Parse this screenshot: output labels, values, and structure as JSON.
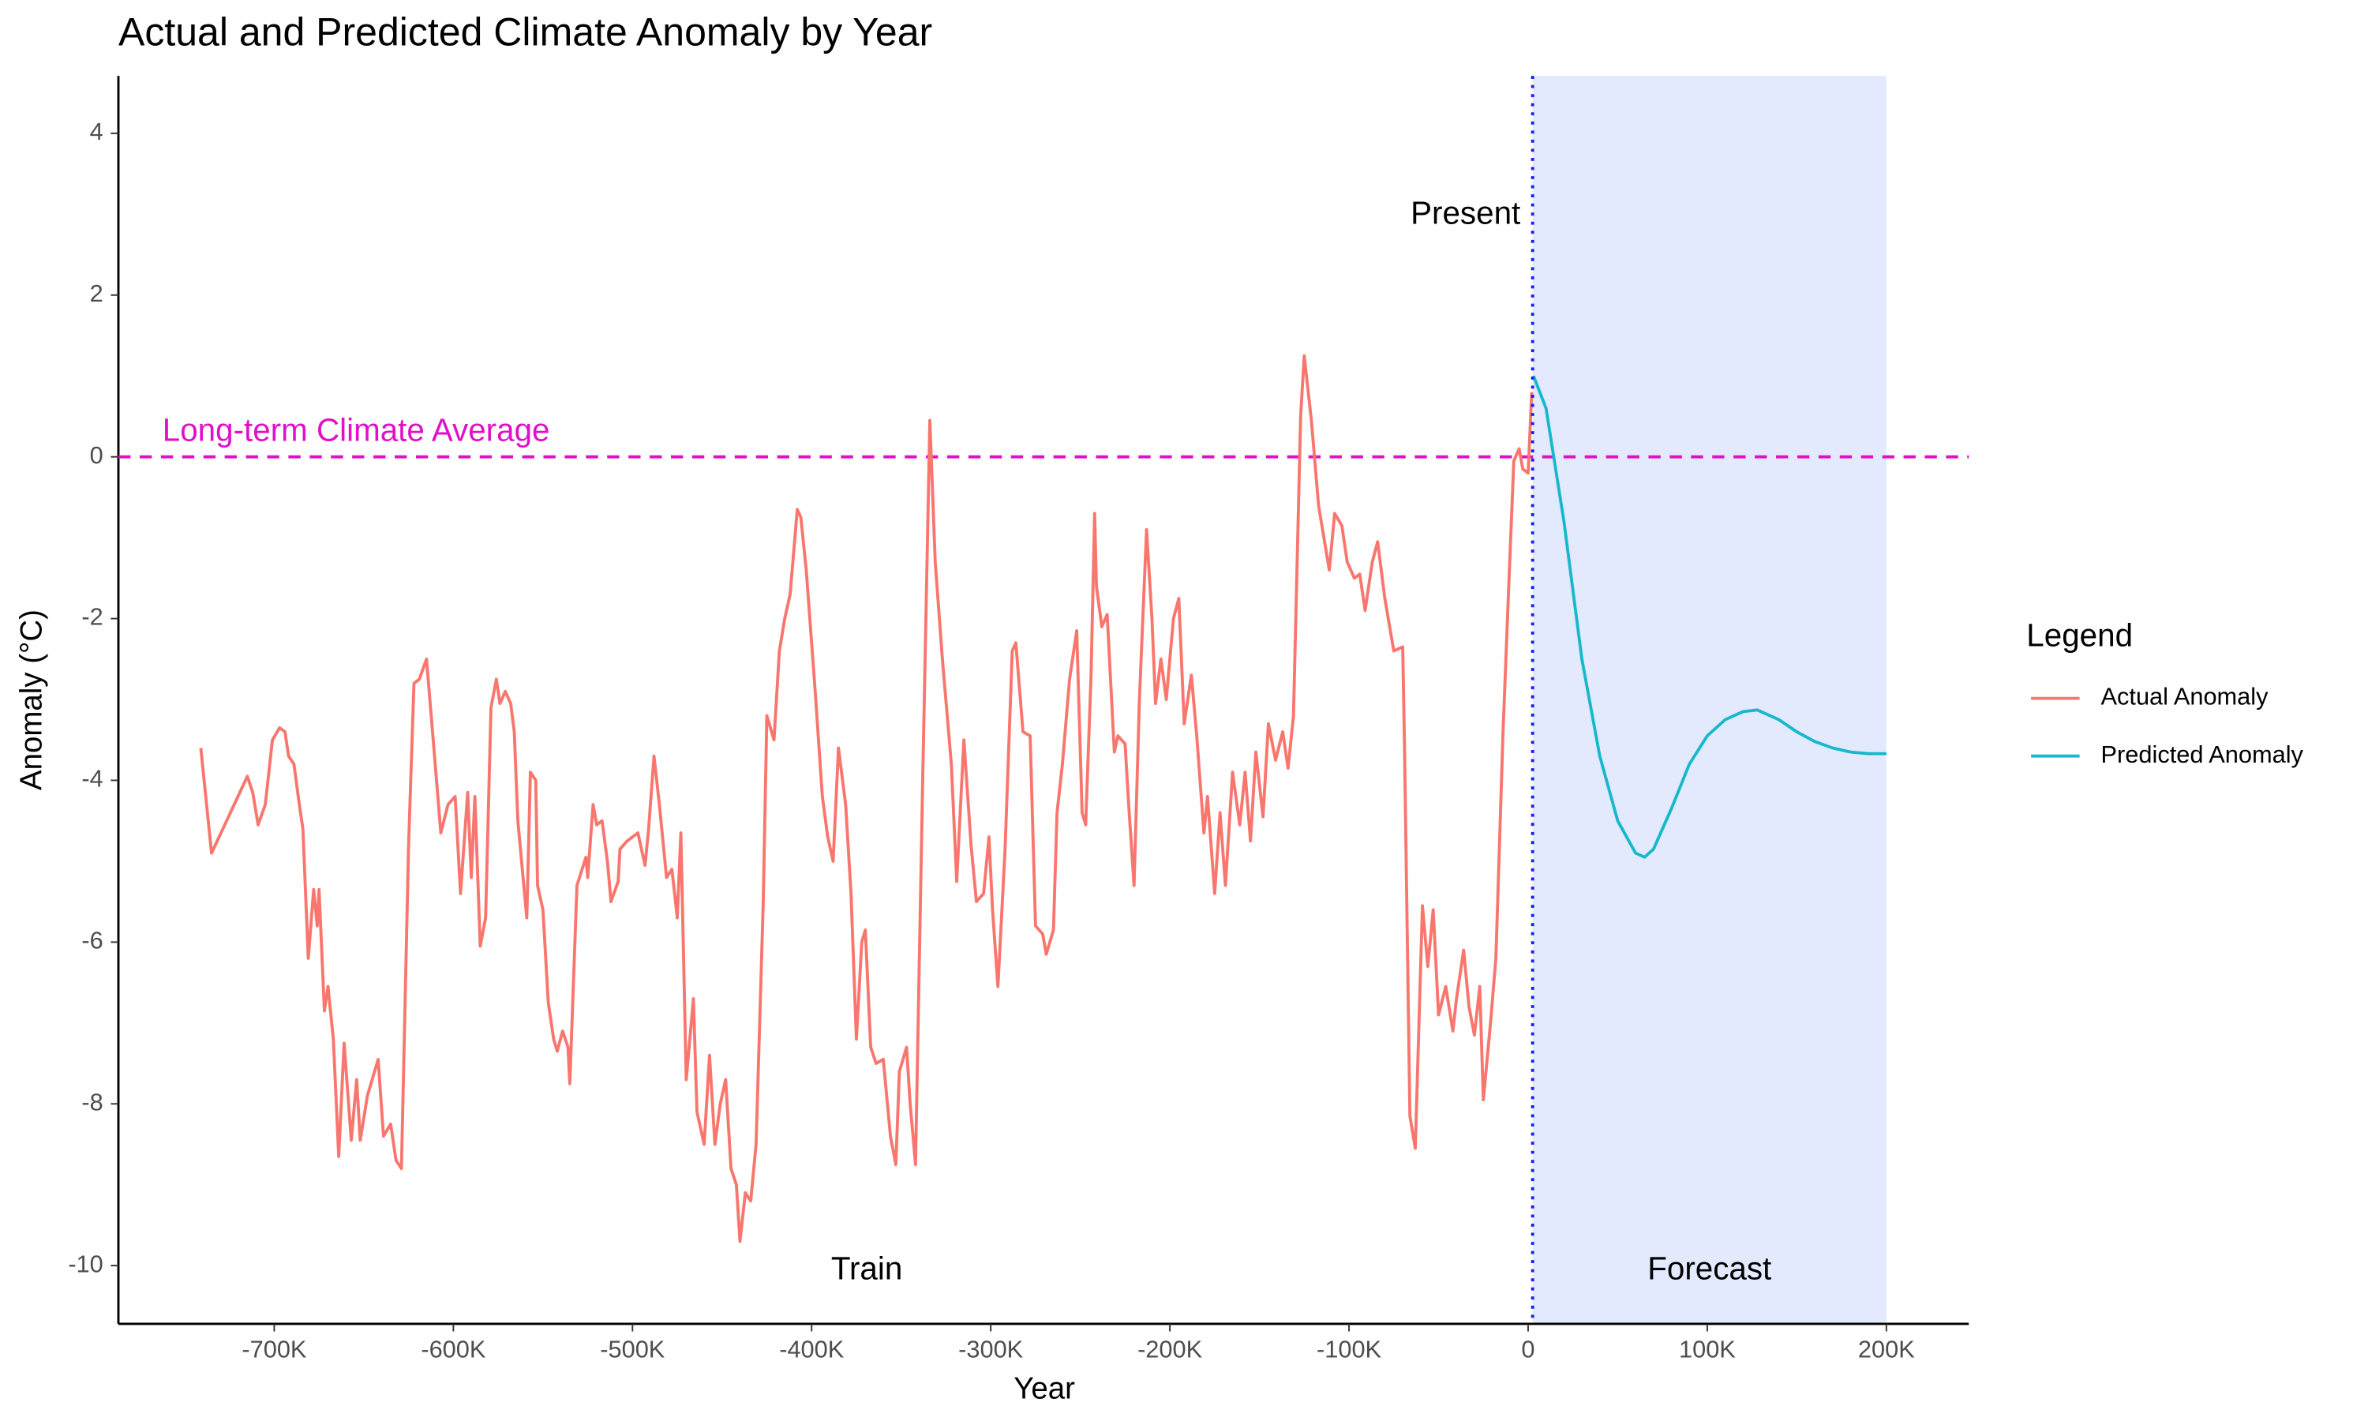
{
  "chart_data": {
    "type": "line",
    "title": "Actual and Predicted Climate Anomaly by Year",
    "xlabel": "Year",
    "ylabel": "Anomaly (°C)",
    "legend_title": "Legend",
    "legend": "right",
    "xlim": [
      -787000,
      246000
    ],
    "ylim": [
      -10.72,
      4.71
    ],
    "xticks": [
      {
        "value": -700000,
        "label": "-700K"
      },
      {
        "value": -600000,
        "label": "-600K"
      },
      {
        "value": -500000,
        "label": "-500K"
      },
      {
        "value": -400000,
        "label": "-400K"
      },
      {
        "value": -300000,
        "label": "-300K"
      },
      {
        "value": -200000,
        "label": "-200K"
      },
      {
        "value": -100000,
        "label": "-100K"
      },
      0,
      {
        "value": 100000,
        "label": "100K"
      },
      {
        "value": 200000,
        "label": "200K"
      }
    ],
    "yticks": [
      -10,
      -8,
      -6,
      -4,
      -2,
      0,
      2,
      4
    ],
    "grid": false,
    "reference_line": {
      "y": 0,
      "label": "Long-term Climate Average",
      "color": "#e010c8"
    },
    "present_line": {
      "x": 2500,
      "label": "Present",
      "color": "#1a1aff"
    },
    "forecast_region": {
      "x": [
        2500,
        200000
      ],
      "label": "Forecast",
      "color": "#e4eafe"
    },
    "train_label": "Train",
    "series": [
      {
        "name": "Actual Anomaly",
        "color": "#f8766d",
        "x": [
          -741000,
          -735000,
          -715000,
          -712000,
          -709000,
          -705000,
          -701000,
          -697000,
          -694000,
          -692000,
          -689000,
          -686000,
          -684000,
          -681000,
          -678000,
          -676000,
          -675000,
          -672000,
          -670000,
          -667000,
          -664000,
          -661000,
          -657000,
          -654000,
          -652000,
          -648000,
          -642000,
          -639000,
          -635000,
          -632000,
          -629000,
          -625000,
          -622000,
          -619000,
          -615000,
          -612000,
          -607000,
          -603000,
          -599000,
          -596000,
          -592000,
          -590000,
          -588000,
          -585000,
          -582000,
          -579000,
          -576000,
          -574000,
          -571000,
          -568000,
          -566000,
          -564000,
          -559000,
          -557000,
          -554000,
          -553000,
          -550000,
          -547000,
          -544000,
          -542000,
          -539000,
          -536000,
          -535000,
          -531000,
          -526000,
          -525000,
          -522000,
          -520000,
          -517000,
          -514000,
          -512000,
          -508000,
          -507000,
          -503000,
          -497000,
          -493000,
          -491000,
          -488000,
          -485000,
          -481000,
          -478000,
          -475000,
          -473000,
          -470000,
          -466000,
          -464000,
          -460000,
          -457000,
          -454000,
          -451000,
          -448000,
          -445000,
          -442000,
          -440000,
          -437000,
          -434000,
          -431000,
          -427000,
          -425000,
          -421000,
          -418000,
          -415000,
          -412000,
          -408000,
          -406000,
          -403000,
          -398000,
          -394000,
          -391000,
          -388000,
          -385000,
          -381000,
          -378000,
          -375000,
          -372000,
          -370000,
          -367000,
          -364000,
          -360000,
          -356000,
          -353000,
          -351000,
          -347000,
          -345000,
          -342000,
          -338000,
          -334000,
          -331000,
          -327000,
          -322000,
          -319000,
          -315000,
          -311000,
          -308000,
          -304000,
          -301000,
          -299000,
          -296000,
          -292000,
          -288000,
          -286000,
          -282000,
          -278000,
          -275000,
          -271000,
          -269000,
          -265000,
          -263000,
          -260000,
          -256000,
          -252000,
          -249000,
          -247000,
          -244000,
          -242000,
          -241000,
          -238000,
          -235000,
          -231000,
          -229000,
          -225000,
          -223000,
          -220000,
          -217000,
          -213000,
          -210000,
          -208000,
          -205000,
          -202000,
          -198000,
          -195000,
          -192000,
          -188000,
          -185000,
          -181000,
          -179000,
          -175000,
          -172000,
          -169000,
          -165000,
          -161000,
          -158000,
          -155000,
          -152000,
          -148000,
          -145000,
          -141000,
          -137000,
          -134000,
          -131000,
          -127000,
          -125000,
          -121000,
          -117000,
          -114000,
          -111000,
          -108000,
          -104000,
          -101000,
          -97000,
          -94000,
          -91000,
          -87000,
          -84000,
          -80000,
          -75000,
          -70000,
          -69000,
          -66000,
          -63000,
          -59000,
          -56000,
          -53000,
          -50000,
          -46000,
          -42000,
          -40000,
          -36000,
          -33000,
          -30000,
          -27000,
          -25000,
          -21000,
          -18000,
          -14000,
          -11000,
          -8000,
          -5000,
          -3000,
          0,
          2000
        ],
        "values": [
          -3.6,
          -4.9,
          -3.95,
          -4.15,
          -4.55,
          -4.3,
          -3.5,
          -3.35,
          -3.4,
          -3.7,
          -3.8,
          -4.3,
          -4.6,
          -6.2,
          -5.35,
          -5.8,
          -5.35,
          -6.85,
          -6.55,
          -7.2,
          -8.65,
          -7.25,
          -8.45,
          -7.7,
          -8.45,
          -7.9,
          -7.45,
          -8.4,
          -8.25,
          -8.7,
          -8.8,
          -4.8,
          -2.8,
          -2.75,
          -2.5,
          -3.3,
          -4.65,
          -4.3,
          -4.2,
          -5.4,
          -4.15,
          -5.2,
          -4.2,
          -6.05,
          -5.7,
          -3.1,
          -2.75,
          -3.05,
          -2.9,
          -3.05,
          -3.4,
          -4.5,
          -5.7,
          -3.9,
          -4.0,
          -5.3,
          -5.6,
          -6.75,
          -7.2,
          -7.35,
          -7.1,
          -7.3,
          -7.75,
          -5.3,
          -4.95,
          -5.2,
          -4.3,
          -4.55,
          -4.5,
          -5.0,
          -5.5,
          -5.25,
          -4.85,
          -4.75,
          -4.65,
          -5.05,
          -4.6,
          -3.7,
          -4.3,
          -5.2,
          -5.1,
          -5.7,
          -4.65,
          -7.7,
          -6.7,
          -8.1,
          -8.5,
          -7.4,
          -8.5,
          -8.0,
          -7.7,
          -8.8,
          -9.0,
          -9.7,
          -9.1,
          -9.2,
          -8.5,
          -5.5,
          -3.2,
          -3.5,
          -2.4,
          -2.0,
          -1.7,
          -0.65,
          -0.75,
          -1.4,
          -2.9,
          -4.2,
          -4.7,
          -5.0,
          -3.6,
          -4.3,
          -5.4,
          -7.2,
          -6.0,
          -5.85,
          -7.3,
          -7.5,
          -7.45,
          -8.4,
          -8.75,
          -7.6,
          -7.3,
          -8.0,
          -8.75,
          -4.0,
          0.45,
          -1.3,
          -2.5,
          -3.8,
          -5.25,
          -3.5,
          -4.8,
          -5.5,
          -5.4,
          -4.7,
          -5.6,
          -6.55,
          -4.85,
          -2.4,
          -2.3,
          -3.4,
          -3.45,
          -5.8,
          -5.9,
          -6.15,
          -5.85,
          -4.4,
          -3.8,
          -2.75,
          -2.15,
          -4.4,
          -4.55,
          -2.7,
          -0.7,
          -1.6,
          -2.1,
          -1.95,
          -3.65,
          -3.45,
          -3.55,
          -4.3,
          -5.3,
          -3.0,
          -0.9,
          -2.0,
          -3.05,
          -2.5,
          -3.0,
          -2.0,
          -1.75,
          -3.3,
          -2.7,
          -3.45,
          -4.65,
          -4.2,
          -5.4,
          -4.4,
          -5.3,
          -3.9,
          -4.55,
          -3.9,
          -4.75,
          -3.65,
          -4.45,
          -3.3,
          -3.75,
          -3.4,
          -3.85,
          -3.2,
          0.5,
          1.25,
          0.45,
          -0.6,
          -1.0,
          -1.4,
          -0.7,
          -0.85,
          -1.3,
          -1.5,
          -1.45,
          -1.9,
          -1.3,
          -1.05,
          -1.75,
          -2.4,
          -2.35,
          -3.6,
          -8.15,
          -8.55,
          -5.55,
          -6.3,
          -5.6,
          -6.9,
          -6.55,
          -7.1,
          -6.7,
          -6.1,
          -6.8,
          -7.15,
          -6.55,
          -7.95,
          -7.0,
          -6.2,
          -3.4,
          -1.7,
          -0.05,
          0.1,
          -0.15,
          -0.2,
          0.8
        ]
      },
      {
        "name": "Predicted Anomaly",
        "color": "#17b8cc",
        "x": [
          3000,
          10000,
          20000,
          30000,
          40000,
          50000,
          60000,
          65000,
          70000,
          80000,
          90000,
          100000,
          110000,
          120000,
          128000,
          140000,
          150000,
          160000,
          170000,
          180000,
          190000,
          200000
        ],
        "values": [
          1.0,
          0.6,
          -0.8,
          -2.5,
          -3.7,
          -4.5,
          -4.9,
          -4.95,
          -4.85,
          -4.35,
          -3.8,
          -3.45,
          -3.25,
          -3.15,
          -3.13,
          -3.25,
          -3.4,
          -3.52,
          -3.6,
          -3.65,
          -3.67,
          -3.67
        ]
      }
    ]
  }
}
